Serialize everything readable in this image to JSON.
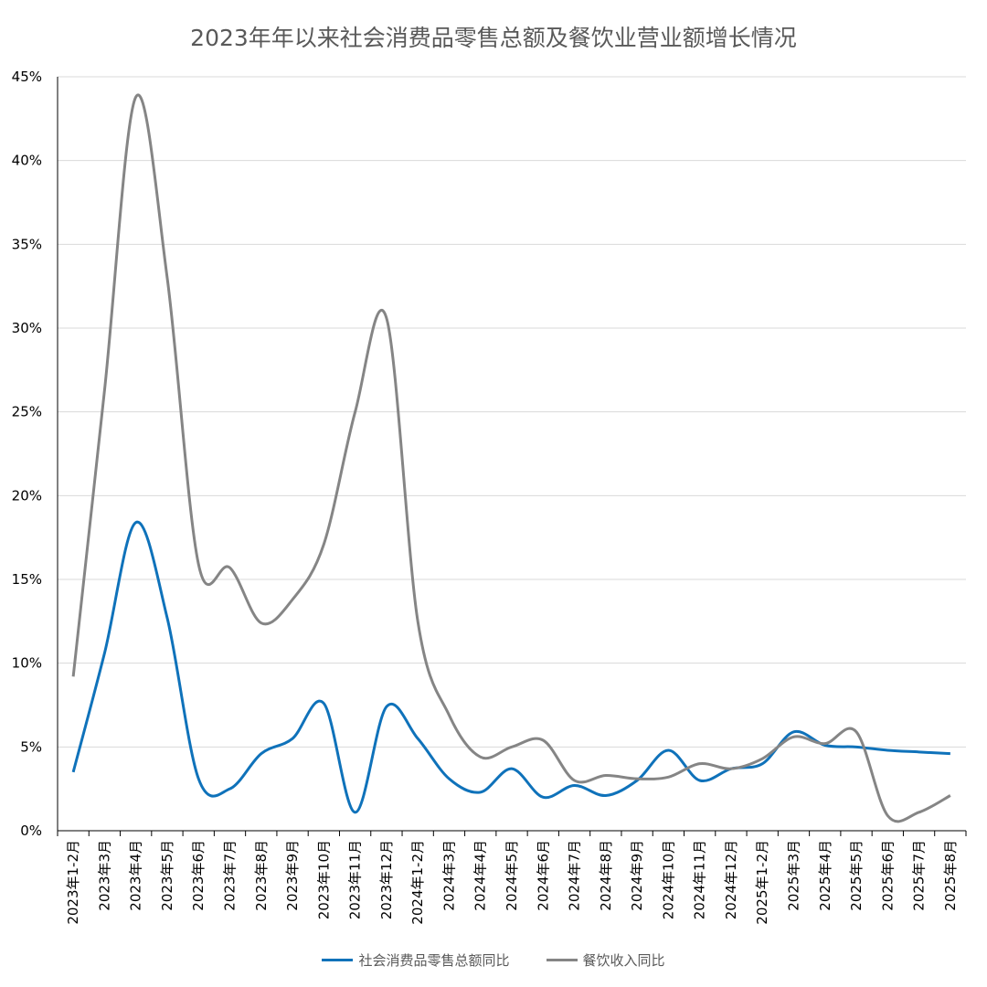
{
  "chart_data": {
    "type": "line",
    "title": "2023年年以来社会消费品零售总额及餐饮业营业额增长情况",
    "xlabel": "",
    "ylabel": "",
    "ylim": [
      0,
      45
    ],
    "yticks": [
      "0%",
      "5%",
      "10%",
      "15%",
      "20%",
      "25%",
      "30%",
      "35%",
      "40%",
      "45%"
    ],
    "grid": true,
    "legend_position": "bottom",
    "categories": [
      "2023年1-2月",
      "2023年3月",
      "2023年4月",
      "2023年5月",
      "2023年6月",
      "2023年7月",
      "2023年8月",
      "2023年9月",
      "2023年10月",
      "2023年11月",
      "2023年12月",
      "2024年1-2月",
      "2024年3月",
      "2024年4月",
      "2024年5月",
      "2024年6月",
      "2024年7月",
      "2024年8月",
      "2024年9月",
      "2024年10月",
      "2024年11月",
      "2024年12月",
      "2025年1-2月",
      "2025年3月",
      "2025年4月",
      "2025年5月",
      "2025年6月",
      "2025年7月",
      "2025年8月"
    ],
    "series": [
      {
        "name": "社会消费品零售总额同比",
        "color": "#0F72BA",
        "values": [
          3.5,
          10.6,
          18.4,
          12.7,
          3.1,
          2.5,
          4.6,
          5.5,
          7.6,
          1.1,
          7.4,
          5.5,
          3.1,
          2.3,
          3.7,
          2.0,
          2.7,
          2.1,
          3.0,
          4.8,
          3.0,
          3.7,
          4.0,
          5.9,
          5.1,
          5.0,
          4.8,
          4.7,
          4.6
        ]
      },
      {
        "name": "餐饮收入同比",
        "color": "#858585",
        "values": [
          9.2,
          26.3,
          43.8,
          33.0,
          15.9,
          15.7,
          12.4,
          13.8,
          17.1,
          25.0,
          30.6,
          12.5,
          6.9,
          4.4,
          5.0,
          5.4,
          3.0,
          3.3,
          3.1,
          3.2,
          4.0,
          3.7,
          4.3,
          5.6,
          5.2,
          5.9,
          0.9,
          1.1,
          2.1
        ]
      }
    ]
  }
}
